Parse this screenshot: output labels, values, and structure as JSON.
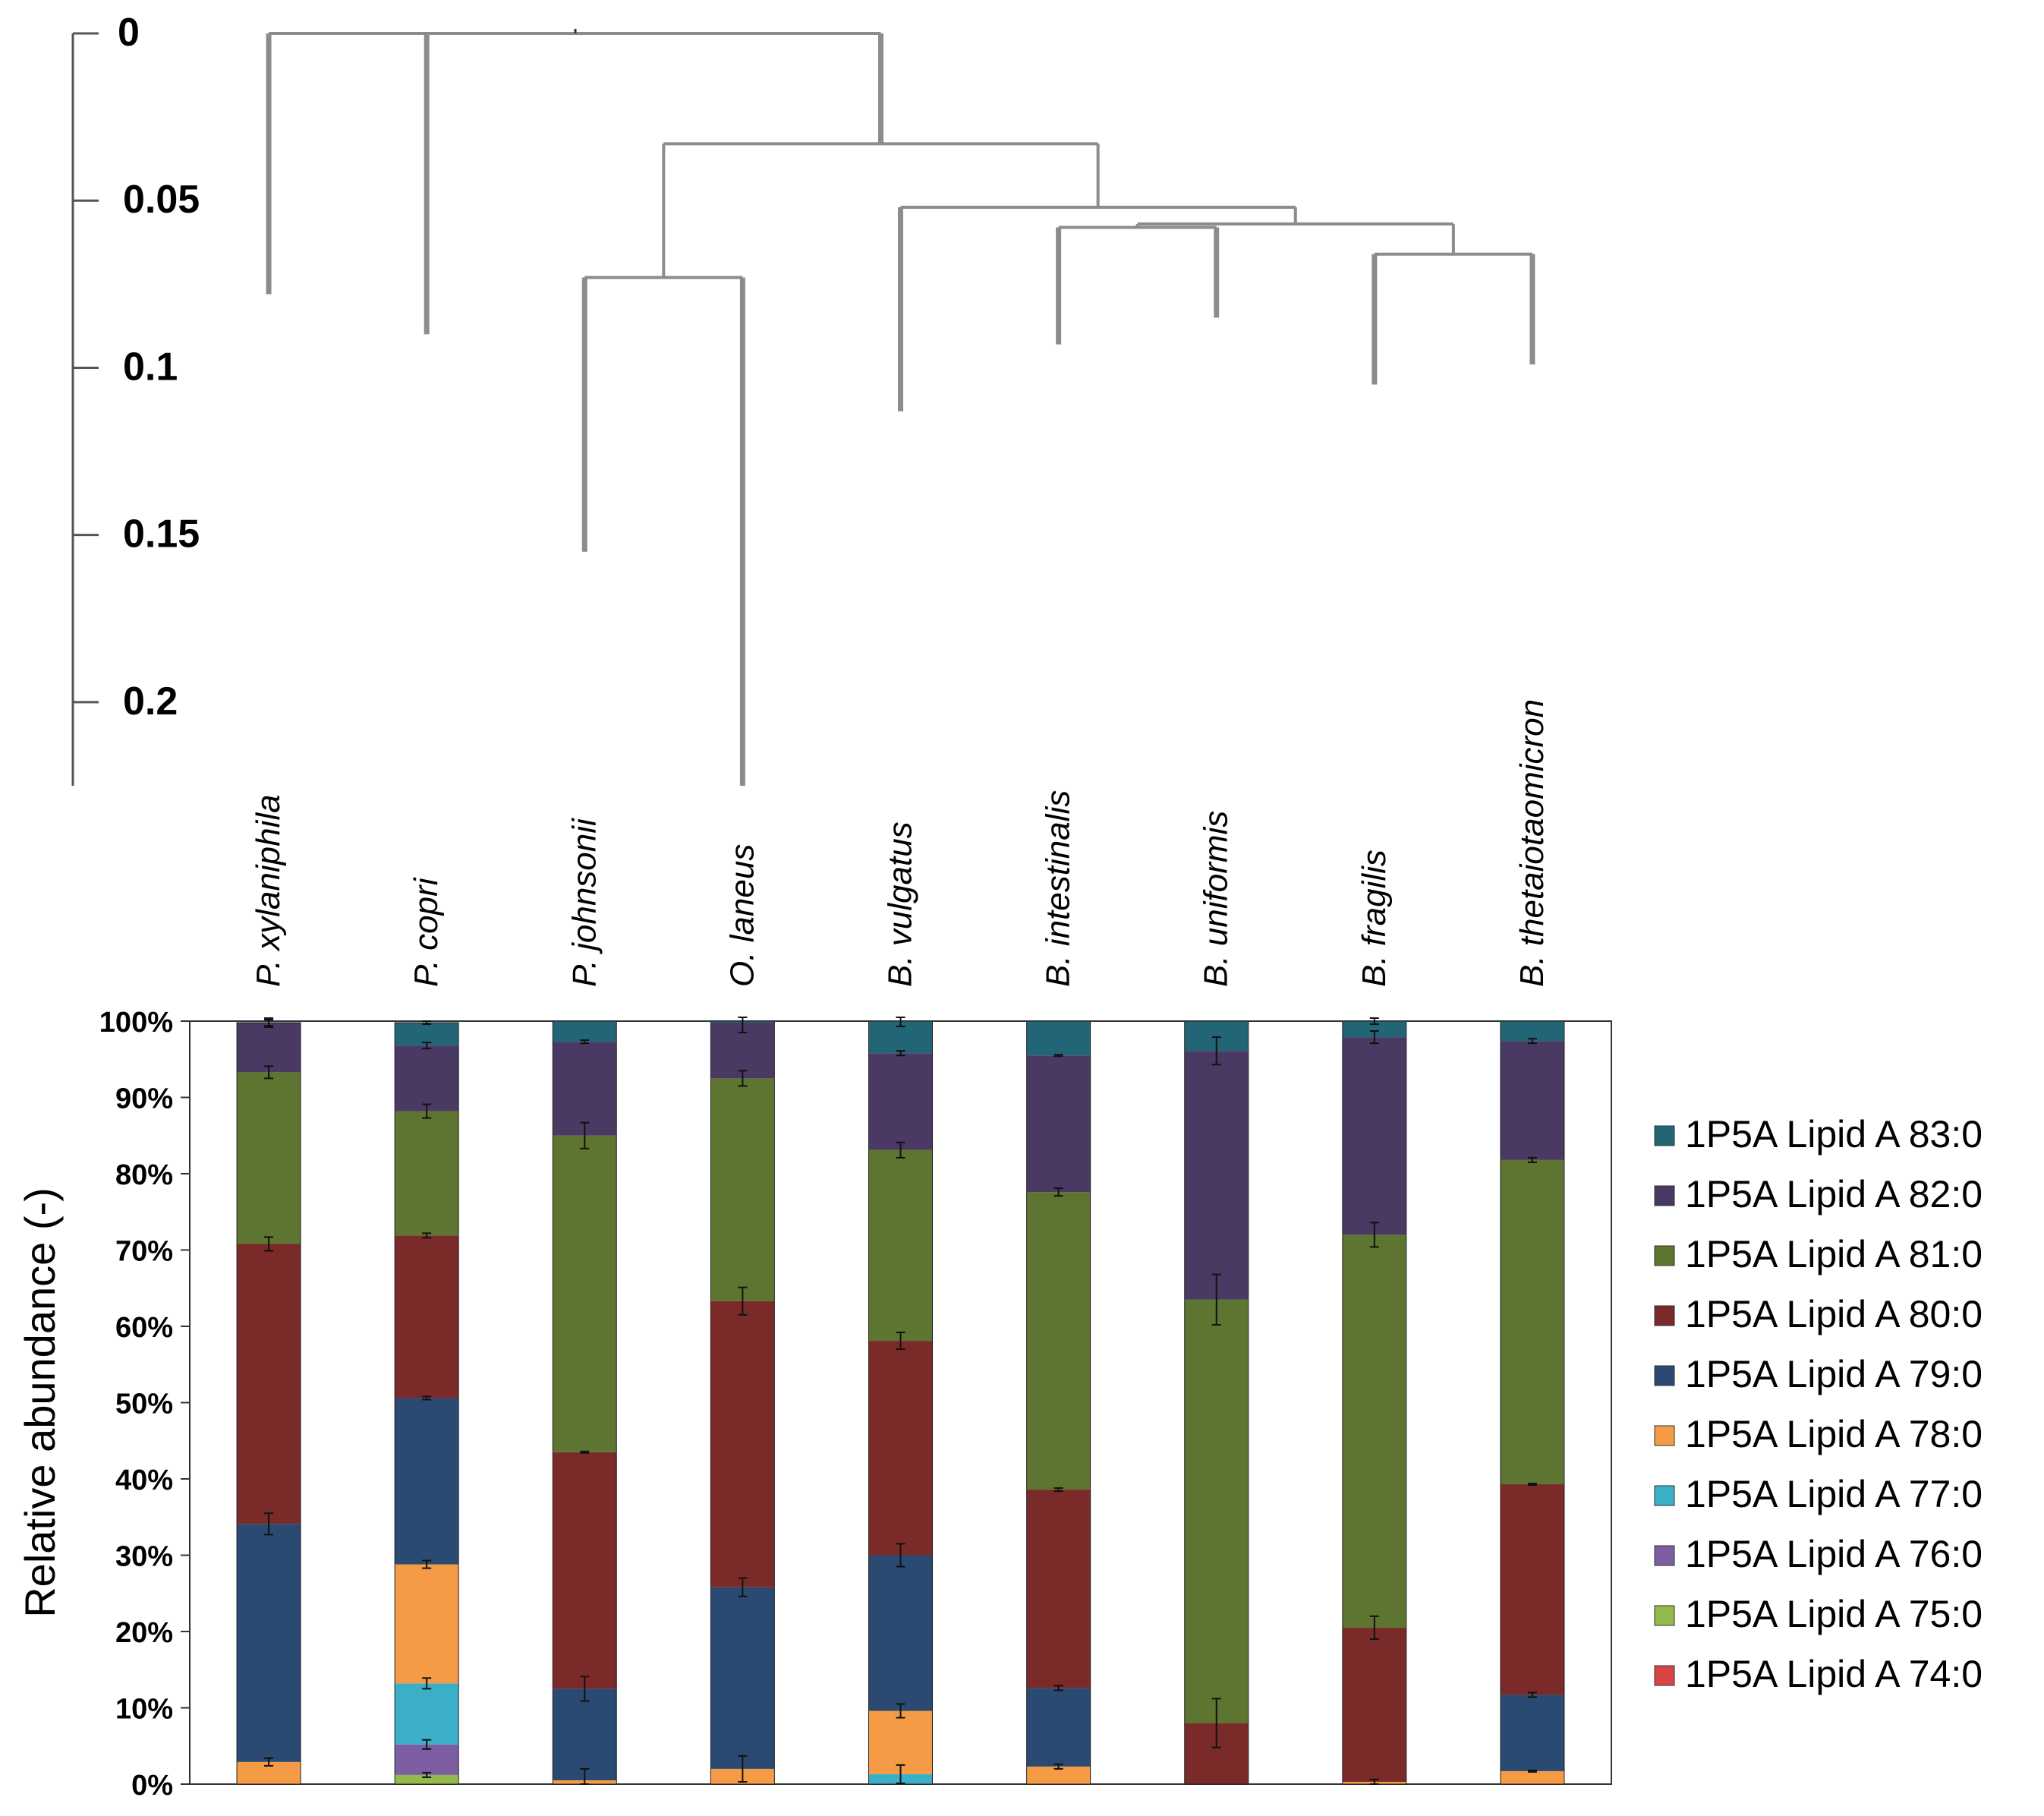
{
  "chart_data": [
    {
      "type": "dendrogram",
      "axis_ticks": [
        "0",
        "0.05",
        "0.1",
        "0.15",
        "0.2"
      ],
      "axis_tick_values": [
        0,
        0.05,
        0.1,
        0.15,
        0.2
      ],
      "axis_range": [
        0,
        0.225
      ],
      "leaves": [
        "P. xylaniphila",
        "P. copri",
        "P. johnsonii",
        "O. laneus",
        "B. vulgatus",
        "B. intestinalis",
        "B. uniformis",
        "B. fragilis",
        "B. thetaiotaomicron"
      ],
      "leaf_heights": [
        0.078,
        0.09,
        0.155,
        0.225,
        0.113,
        0.093,
        0.085,
        0.105,
        0.099
      ],
      "merges": [
        {
          "children": [
            "B. intestinalis",
            "B. uniformis"
          ],
          "height": 0.058
        },
        {
          "children": [
            "B. fragilis",
            "B. thetaiotaomicron"
          ],
          "height": 0.066
        },
        {
          "children": [
            "BI+BU",
            "BF+BT"
          ],
          "height": 0.057
        },
        {
          "children": [
            "B. vulgatus",
            "BI+BU+BF+BT"
          ],
          "height": 0.052
        },
        {
          "children": [
            "P. johnsonii",
            "O. laneus"
          ],
          "height": 0.073
        },
        {
          "children": [
            "PJ+OL",
            "Bacteroides"
          ],
          "height": 0.033
        },
        {
          "children": [
            "P. xylaniphila",
            "P. copri",
            "rest"
          ],
          "height": 0
        }
      ]
    },
    {
      "type": "bar",
      "stacked": true,
      "ylabel": "Relative abundance (-)",
      "ylim": [
        0,
        100
      ],
      "yticks": [
        "0%",
        "10%",
        "20%",
        "30%",
        "40%",
        "50%",
        "60%",
        "70%",
        "80%",
        "90%",
        "100%"
      ],
      "categories": [
        "P. xylaniphila",
        "P. copri",
        "P. johnsonii",
        "O. laneus",
        "B. vulgatus",
        "B. intestinalis",
        "B. uniformis",
        "B. fragilis",
        "B. thetaiotaomicron"
      ],
      "legend_position": "right",
      "series": [
        {
          "name": "1P5A Lipid A 74:0",
          "color": "#d94545",
          "values": [
            0,
            0,
            0,
            0,
            0,
            0,
            0,
            0,
            0
          ],
          "errors": [
            0,
            0,
            0,
            0,
            0,
            0,
            0,
            0,
            0
          ]
        },
        {
          "name": "1P5A Lipid A 75:0",
          "color": "#93bb4a",
          "values": [
            0,
            1.2,
            0,
            0,
            0,
            0,
            0,
            0,
            0
          ],
          "errors": [
            0,
            0.3,
            0,
            0,
            0,
            0,
            0,
            0,
            0
          ]
        },
        {
          "name": "1P5A Lipid A 76:0",
          "color": "#7e5ea3",
          "values": [
            0,
            4.0,
            0,
            0,
            0,
            0,
            0,
            0,
            0
          ],
          "errors": [
            0,
            0.6,
            0,
            0,
            0,
            0,
            0,
            0,
            0
          ]
        },
        {
          "name": "1P5A Lipid A 77:0",
          "color": "#3bafc8",
          "values": [
            0,
            8.0,
            0,
            0,
            1.3,
            0,
            0,
            0,
            0
          ],
          "errors": [
            0,
            0.7,
            0,
            0,
            1.2,
            0,
            0,
            0,
            0
          ]
        },
        {
          "name": "1P5A Lipid A 78:0",
          "color": "#f59b46",
          "values": [
            2.9,
            15.6,
            0.5,
            2.0,
            8.3,
            2.3,
            0,
            0.3,
            1.7
          ],
          "errors": [
            0.5,
            0.5,
            1.5,
            1.7,
            0.9,
            0.3,
            0,
            0.3,
            0.1
          ]
        },
        {
          "name": "1P5A Lipid A 79:0",
          "color": "#2a4a72",
          "values": [
            31.2,
            21.8,
            12.0,
            23.8,
            20.4,
            10.3,
            0,
            0,
            10.0
          ],
          "errors": [
            1.4,
            0.2,
            1.6,
            1.2,
            1.5,
            0.3,
            0,
            0,
            0.3
          ]
        },
        {
          "name": "1P5A Lipid A 80:0",
          "color": "#7a2a29",
          "values": [
            36.7,
            21.3,
            31.0,
            37.5,
            28.1,
            26.0,
            8.0,
            20.2,
            27.6
          ],
          "errors": [
            0.9,
            0.3,
            0.1,
            1.8,
            1.1,
            0.2,
            3.2,
            1.5,
            0.1
          ]
        },
        {
          "name": "1P5A Lipid A 81:0",
          "color": "#5d7530",
          "values": [
            22.5,
            16.3,
            41.5,
            29.2,
            25.0,
            39.0,
            55.5,
            51.5,
            42.5
          ],
          "errors": [
            0.8,
            0.9,
            1.7,
            1.0,
            1.0,
            0.5,
            3.3,
            1.6,
            0.3
          ]
        },
        {
          "name": "1P5A Lipid A 82:0",
          "color": "#4a3963",
          "values": [
            6.5,
            8.6,
            12.3,
            7.3,
            12.7,
            17.9,
            32.6,
            25.9,
            15.6
          ],
          "errors": [
            0.6,
            0.4,
            0.2,
            1.3,
            0.3,
            0.1,
            1.8,
            0.8,
            0.3
          ]
        },
        {
          "name": "1P5A Lipid A 83:0",
          "color": "#226577",
          "values": [
            0,
            3.0,
            2.7,
            0.2,
            4.2,
            4.5,
            3.9,
            2.1,
            2.6
          ],
          "errors": [
            0.4,
            0.2,
            0,
            0,
            0.7,
            0,
            0,
            0.4,
            0
          ]
        }
      ]
    }
  ]
}
